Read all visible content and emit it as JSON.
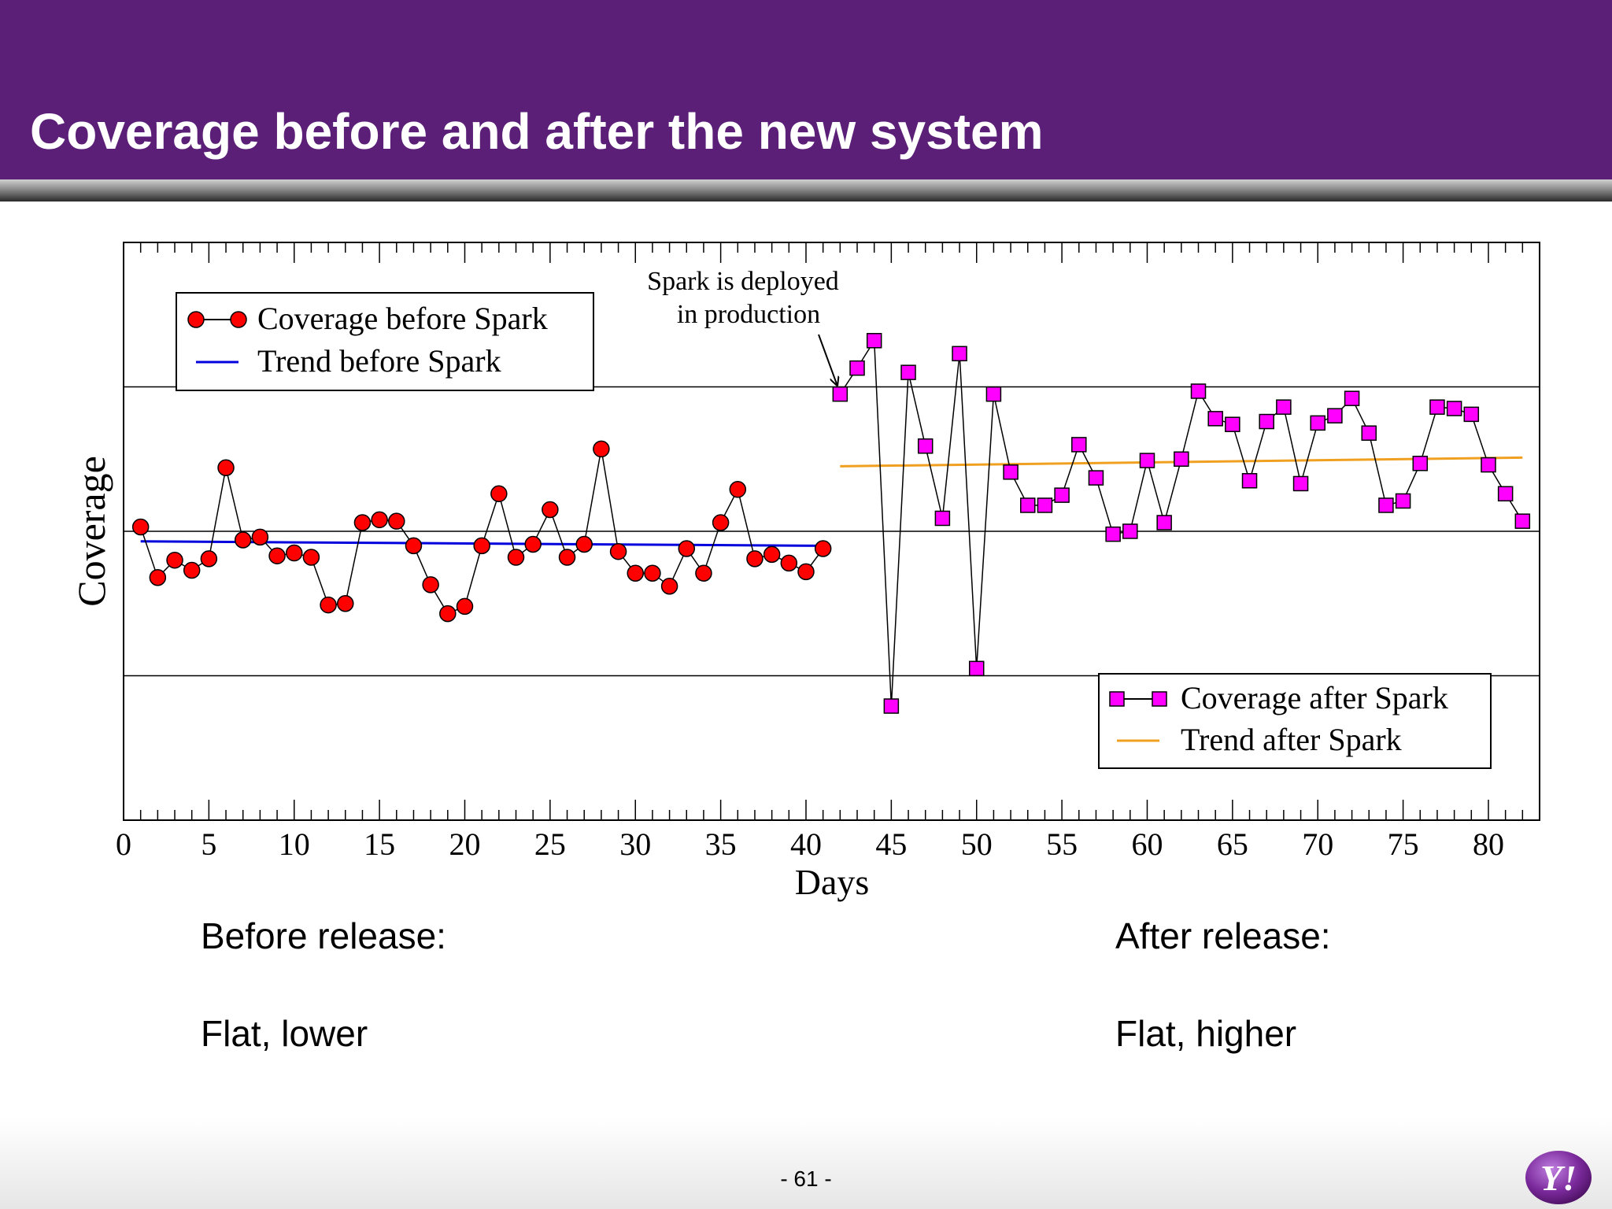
{
  "slide": {
    "title": "Coverage before and after the new system",
    "page_number": "- 61 -",
    "logo_text": "Y!",
    "captions": {
      "before_heading": "Before release:",
      "before_desc": "Flat, lower",
      "after_heading": "After release:",
      "after_desc": "Flat, higher"
    },
    "colors": {
      "header": "#5b1f78",
      "before_marker": "#ff0000",
      "after_marker": "#ff00ff",
      "trend_before": "#0000dd",
      "trend_after": "#f0a020"
    }
  },
  "chart_data": {
    "type": "line",
    "title": "",
    "xlabel": "Days",
    "ylabel": "Coverage",
    "xlim": [
      0,
      83
    ],
    "ylim": [
      0,
      4
    ],
    "x_ticks": [
      0,
      5,
      10,
      15,
      20,
      25,
      30,
      35,
      40,
      45,
      50,
      55,
      60,
      65,
      70,
      75,
      80
    ],
    "y_gridlines": [
      1,
      2,
      3
    ],
    "y_tick_labels_shown": false,
    "grid": "horizontal",
    "annotation": {
      "text_line1": "Spark is deployed",
      "text_line2": "in production",
      "points_to_x": 42
    },
    "series": [
      {
        "name": "Coverage before Spark",
        "marker": "circle",
        "color": "#ff0000",
        "x": [
          1,
          2,
          3,
          4,
          5,
          6,
          7,
          8,
          9,
          10,
          11,
          12,
          13,
          14,
          15,
          16,
          17,
          18,
          19,
          20,
          21,
          22,
          23,
          24,
          25,
          26,
          27,
          28,
          29,
          30,
          31,
          32,
          33,
          34,
          35,
          36,
          37,
          38,
          39,
          40,
          41
        ],
        "y": [
          2.03,
          1.68,
          1.8,
          1.73,
          1.81,
          2.44,
          1.94,
          1.96,
          1.83,
          1.85,
          1.82,
          1.49,
          1.5,
          2.06,
          2.08,
          2.07,
          1.9,
          1.63,
          1.43,
          1.48,
          1.9,
          2.26,
          1.82,
          1.91,
          2.15,
          1.82,
          1.91,
          2.57,
          1.86,
          1.71,
          1.71,
          1.62,
          1.88,
          1.71,
          2.06,
          2.29,
          1.81,
          1.84,
          1.78,
          1.72,
          1.88
        ]
      },
      {
        "name": "Trend before Spark",
        "color": "#0000dd",
        "x": [
          1,
          41
        ],
        "y": [
          1.93,
          1.9
        ]
      },
      {
        "name": "Coverage after Spark",
        "marker": "square",
        "color": "#ff00ff",
        "x": [
          42,
          43,
          44,
          45,
          46,
          47,
          48,
          49,
          50,
          51,
          52,
          53,
          54,
          55,
          56,
          57,
          58,
          59,
          60,
          61,
          62,
          63,
          64,
          65,
          66,
          67,
          68,
          69,
          70,
          71,
          72,
          73,
          74,
          75,
          76,
          77,
          78,
          79,
          80,
          81,
          82
        ],
        "y": [
          2.95,
          3.13,
          3.32,
          0.79,
          3.1,
          2.59,
          2.09,
          3.23,
          1.05,
          2.95,
          2.41,
          2.18,
          2.18,
          2.25,
          2.6,
          2.37,
          1.98,
          2.0,
          2.49,
          2.06,
          2.5,
          2.97,
          2.78,
          2.74,
          2.35,
          2.76,
          2.86,
          2.33,
          2.75,
          2.8,
          2.92,
          2.68,
          2.18,
          2.21,
          2.47,
          2.86,
          2.85,
          2.81,
          2.46,
          2.26,
          2.07
        ]
      },
      {
        "name": "Trend after Spark",
        "color": "#f0a020",
        "x": [
          42,
          82
        ],
        "y": [
          2.45,
          2.51
        ]
      }
    ],
    "legends": [
      {
        "placement": "top-left",
        "entries": [
          "Coverage before Spark",
          "Trend before Spark"
        ]
      },
      {
        "placement": "bottom-right",
        "entries": [
          "Coverage after Spark",
          "Trend after Spark"
        ]
      }
    ]
  }
}
